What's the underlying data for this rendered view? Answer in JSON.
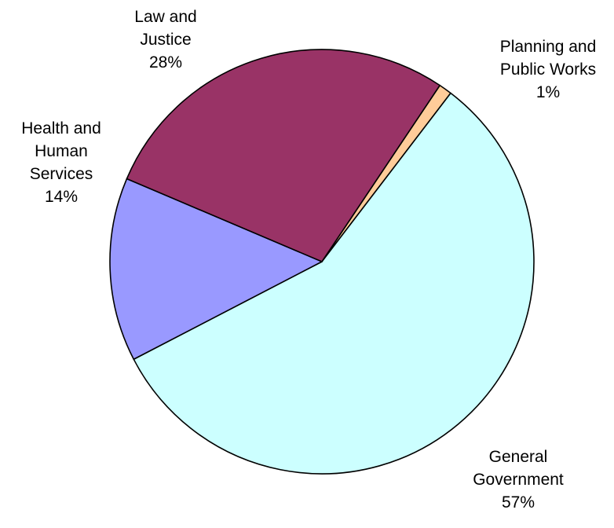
{
  "chart_data": {
    "type": "pie",
    "slices": [
      {
        "label_lines": [
          "Planning and",
          "Public Works"
        ],
        "percent_text": "1%",
        "value": 1,
        "color": "#FFCC99"
      },
      {
        "label_lines": [
          "General",
          "Government"
        ],
        "percent_text": "57%",
        "value": 57,
        "color": "#CCFFFF"
      },
      {
        "label_lines": [
          "Health and",
          "Human",
          "Services"
        ],
        "percent_text": "14%",
        "value": 14,
        "color": "#9999FF"
      },
      {
        "label_lines": [
          "Law and",
          "Justice"
        ],
        "percent_text": "28%",
        "value": 28,
        "color": "#993366"
      }
    ]
  }
}
